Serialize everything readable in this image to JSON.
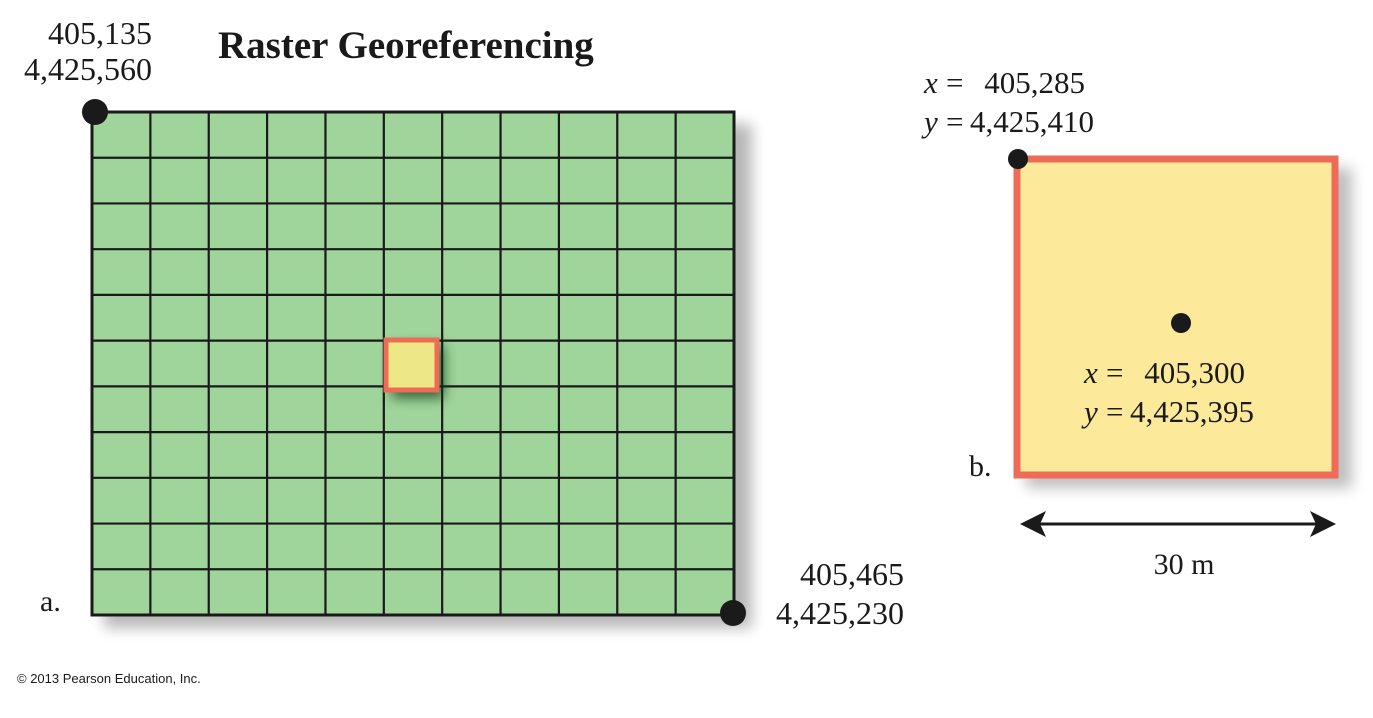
{
  "title": "Raster Georeferencing",
  "panel_a": {
    "label": "a.",
    "top_left_corner": {
      "x": "405,135",
      "y": "4,425,560"
    },
    "bottom_right_corner": {
      "x": "405,465",
      "y": "4,425,230"
    },
    "grid": {
      "columns": 11,
      "rows": 11,
      "highlighted_cell": {
        "column": 5,
        "row": 5
      }
    }
  },
  "panel_b": {
    "label": "b.",
    "cell_corner": {
      "x_label": "x",
      "y_label": "y",
      "equals": "=",
      "x": "405,285",
      "y": "4,425,410"
    },
    "cell_center": {
      "x_label": "x",
      "y_label": "y",
      "equals": "=",
      "x": "405,300",
      "y": "4,425,395"
    },
    "scale_label": "30 m"
  },
  "colors": {
    "grid_fill": "#9fd49a",
    "highlight_border": "#ee6b57",
    "cell_fill": "#fce99a",
    "small_cell_fill": "#ede786",
    "line": "#1a1a1a"
  },
  "copyright": "© 2013 Pearson Education, Inc."
}
